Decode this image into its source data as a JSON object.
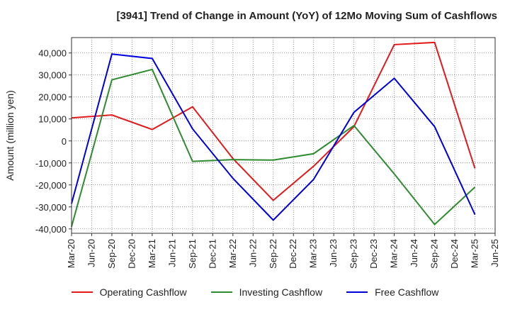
{
  "chart_data": {
    "type": "line",
    "title": "[3941]  Trend of Change in Amount (YoY) of 12Mo Moving Sum of Cashflows",
    "xlabel": "",
    "ylabel": "Amount (million yen)",
    "ylim": [
      -42000,
      47000
    ],
    "yticks": [
      -40000,
      -30000,
      -20000,
      -10000,
      0,
      10000,
      20000,
      30000,
      40000
    ],
    "ytick_labels": [
      "-40,000",
      "-30,000",
      "-20,000",
      "-10,000",
      "0",
      "10,000",
      "20,000",
      "30,000",
      "40,000"
    ],
    "categories": [
      "Mar-20",
      "Jun-20",
      "Sep-20",
      "Dec-20",
      "Mar-21",
      "Jun-21",
      "Sep-21",
      "Dec-21",
      "Mar-22",
      "Jun-22",
      "Sep-22",
      "Dec-22",
      "Mar-23",
      "Jun-23",
      "Sep-23",
      "Dec-23",
      "Mar-24",
      "Jun-24",
      "Sep-24",
      "Dec-24",
      "Mar-25",
      "Jun-25"
    ],
    "grid": true,
    "legend_position": "bottom",
    "series": [
      {
        "name": "Operating Cashflow",
        "color": "#e31a1c",
        "values": [
          10500,
          null,
          11800,
          null,
          5200,
          null,
          15500,
          null,
          -8000,
          null,
          -27000,
          null,
          -11500,
          null,
          6500,
          null,
          43800,
          null,
          44800,
          null,
          -12500,
          null
        ]
      },
      {
        "name": "Investing Cashflow",
        "color": "#2e8b2e",
        "values": [
          -39000,
          null,
          27800,
          null,
          32500,
          null,
          -9300,
          null,
          -8500,
          null,
          -8700,
          null,
          -5800,
          null,
          7000,
          null,
          -15000,
          null,
          -38000,
          null,
          -21000,
          null
        ]
      },
      {
        "name": "Free Cashflow",
        "color": "#0000dd",
        "values": [
          -28500,
          null,
          39500,
          null,
          37500,
          null,
          5500,
          null,
          -17000,
          null,
          -36000,
          null,
          -17500,
          null,
          13000,
          null,
          28500,
          null,
          6500,
          null,
          -33500,
          null
        ]
      }
    ]
  }
}
